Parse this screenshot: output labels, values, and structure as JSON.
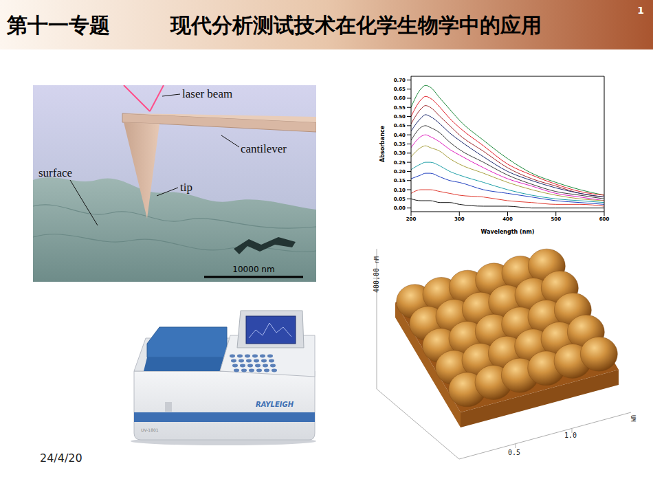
{
  "header": {
    "title": "第十一专题",
    "subtitle": "现代分析测试技术在化学生物学中的应用",
    "page": "1"
  },
  "footer": {
    "date": "24/4/20"
  },
  "afm_diagram": {
    "labels": {
      "laser_beam": "laser beam",
      "cantilever": "cantilever",
      "surface": "surface",
      "tip": "tip"
    },
    "scale_bar": "10000 nm"
  },
  "instrument": {
    "brand": "RAYLEIGH",
    "model": "UV-1801"
  },
  "afm_image": {
    "z_tick": "400.00",
    "z_unit": "nM",
    "xy_unit": "UM",
    "xy_ticks": [
      "1.0",
      "0.5"
    ]
  },
  "chart_data": {
    "type": "line",
    "x_label": "Wavelength (nm)",
    "y_label": "Absorbance",
    "x": [
      200,
      220,
      230,
      240,
      260,
      280,
      300,
      350,
      400,
      450,
      500,
      550,
      600
    ],
    "series": [
      {
        "color": "#1f8a3c",
        "values": [
          0.55,
          0.65,
          0.67,
          0.66,
          0.6,
          0.54,
          0.48,
          0.37,
          0.27,
          0.19,
          0.14,
          0.1,
          0.07
        ]
      },
      {
        "color": "#e3202a",
        "values": [
          0.5,
          0.59,
          0.61,
          0.6,
          0.55,
          0.49,
          0.44,
          0.34,
          0.24,
          0.18,
          0.13,
          0.09,
          0.07
        ]
      },
      {
        "color": "#9e2a2e",
        "values": [
          0.46,
          0.54,
          0.56,
          0.55,
          0.5,
          0.45,
          0.4,
          0.31,
          0.22,
          0.16,
          0.12,
          0.08,
          0.06
        ]
      },
      {
        "color": "#1c2a6e",
        "values": [
          0.42,
          0.49,
          0.51,
          0.5,
          0.46,
          0.41,
          0.37,
          0.28,
          0.2,
          0.15,
          0.11,
          0.08,
          0.06
        ]
      },
      {
        "color": "#3a3a3a",
        "values": [
          0.37,
          0.44,
          0.45,
          0.44,
          0.41,
          0.36,
          0.32,
          0.25,
          0.18,
          0.13,
          0.09,
          0.07,
          0.05
        ]
      },
      {
        "color": "#e020c0",
        "values": [
          0.33,
          0.39,
          0.4,
          0.39,
          0.36,
          0.32,
          0.29,
          0.22,
          0.16,
          0.12,
          0.08,
          0.06,
          0.04
        ]
      },
      {
        "color": "#a8a040",
        "values": [
          0.28,
          0.33,
          0.34,
          0.33,
          0.31,
          0.27,
          0.24,
          0.19,
          0.14,
          0.1,
          0.07,
          0.05,
          0.04
        ]
      },
      {
        "color": "#1fa0a8",
        "values": [
          0.21,
          0.24,
          0.25,
          0.25,
          0.23,
          0.2,
          0.18,
          0.14,
          0.1,
          0.07,
          0.05,
          0.04,
          0.03
        ]
      },
      {
        "color": "#2040c0",
        "values": [
          0.16,
          0.18,
          0.19,
          0.19,
          0.17,
          0.15,
          0.14,
          0.1,
          0.08,
          0.06,
          0.04,
          0.03,
          0.02
        ]
      },
      {
        "color": "#e03a30",
        "values": [
          0.08,
          0.1,
          0.1,
          0.1,
          0.09,
          0.08,
          0.07,
          0.06,
          0.04,
          0.03,
          0.02,
          0.02,
          0.01
        ]
      },
      {
        "color": "#111111",
        "values": [
          0.05,
          0.04,
          0.04,
          0.04,
          0.03,
          0.03,
          0.02,
          0.01,
          0.01,
          0.0,
          0.0,
          0.0,
          0.0
        ]
      }
    ],
    "xlim": [
      200,
      600
    ],
    "xticks": [
      200,
      300,
      400,
      500,
      600
    ],
    "ylim": [
      -0.02,
      0.72
    ],
    "yticks": [
      {
        "value": 0,
        "label": "0.00"
      },
      0.05,
      {
        "value": 0.1,
        "label": "0.10"
      },
      0.15,
      {
        "value": 0.2,
        "label": "0.20"
      },
      0.25,
      {
        "value": 0.3,
        "label": "0.30"
      },
      0.35,
      {
        "value": 0.4,
        "label": "0.40"
      },
      0.45,
      {
        "value": 0.5,
        "label": "0.50"
      },
      0.55,
      {
        "value": 0.6,
        "label": "0.60"
      },
      0.65,
      {
        "value": 0.7,
        "label": "0.70"
      }
    ],
    "grid": false
  }
}
